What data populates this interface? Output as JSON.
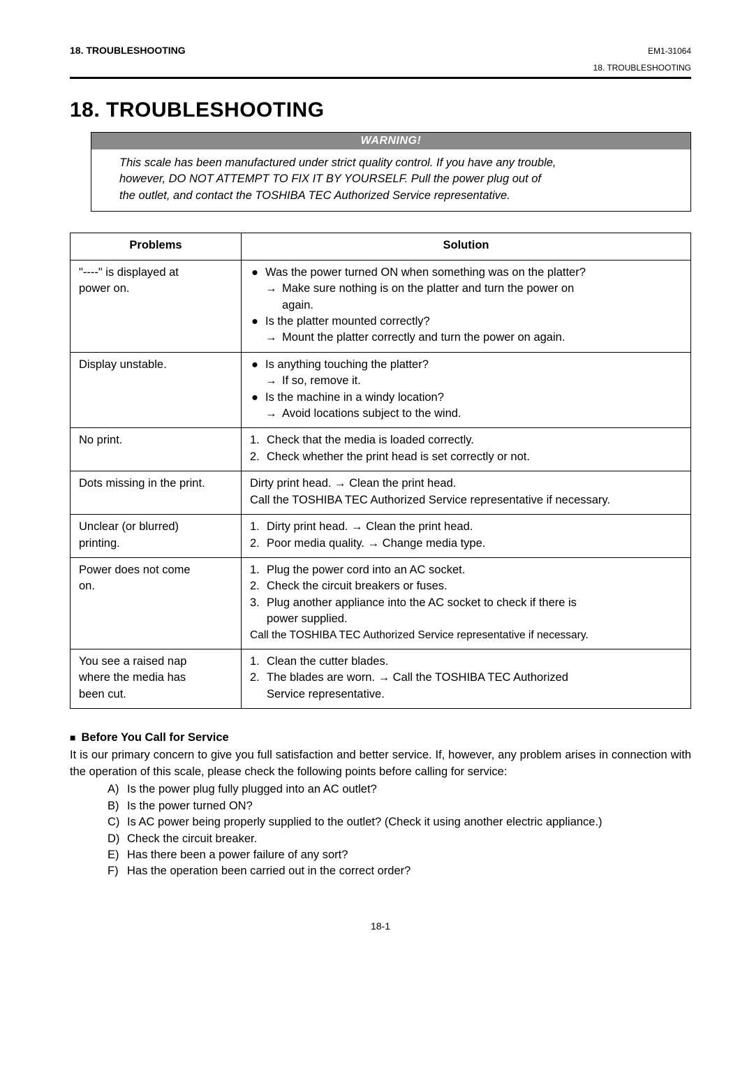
{
  "header": {
    "left": "18. TROUBLESHOOTING",
    "right_code": "EM1-31064",
    "right_sub": "18.  TROUBLESHOOTING"
  },
  "title": "18.  TROUBLESHOOTING",
  "warning": {
    "label": "WARNING!",
    "line1": "This scale has been manufactured under strict quality control.  If you have any trouble,",
    "line2": "however, DO NOT ATTEMPT TO FIX IT BY YOURSELF.  Pull the power plug out of",
    "line3": "the outlet, and contact the TOSHIBA TEC Authorized Service representative."
  },
  "table": {
    "col_problems": "Problems",
    "col_solution": "Solution",
    "r1": {
      "problem_l1": "\"----\" is displayed at",
      "problem_l2": "power on.",
      "b1": "Was the power turned ON when something was on the platter?",
      "a1a": "Make sure nothing is on the platter and turn the power on",
      "a1b": "again.",
      "b2": "Is the platter mounted correctly?",
      "a2": "Mount the platter correctly and turn the power on again."
    },
    "r2": {
      "problem": "Display unstable.",
      "b1": "Is anything touching the platter?",
      "a1": "If so, remove it.",
      "b2": "Is the machine in a windy location?",
      "a2": "Avoid locations subject to the wind."
    },
    "r3": {
      "problem": "No print.",
      "n1": "Check that the media is loaded correctly.",
      "n2": "Check whether the print head is set correctly or not."
    },
    "r4": {
      "problem": "Dots missing in the print.",
      "l1": "Dirty print head. → Clean the print head.",
      "l2": "Call the TOSHIBA TEC Authorized Service representative if necessary."
    },
    "r5": {
      "problem_l1": "Unclear (or blurred)",
      "problem_l2": "printing.",
      "n1": "Dirty print head. → Clean the print head.",
      "n2": "Poor media quality. → Change media type."
    },
    "r6": {
      "problem_l1": "Power does not come",
      "problem_l2": "on.",
      "n1": "Plug the power cord into an AC socket.",
      "n2": "Check the circuit breakers or fuses.",
      "n3a": "Plug another appliance into the AC socket to check if there is",
      "n3b": "power supplied.",
      "last": "Call the TOSHIBA TEC Authorized Service representative if necessary."
    },
    "r7": {
      "problem_l1": "You see a raised nap",
      "problem_l2": "where the media has",
      "problem_l3": "been cut.",
      "n1": "Clean the cutter blades.",
      "n2a": "The blades are worn. → Call the TOSHIBA TEC Authorized",
      "n2b": "Service representative."
    }
  },
  "before": {
    "heading": "Before You Call for Service",
    "intro": "It is our primary concern to give you full satisfaction and better service.  If, however, any problem arises in connection with the operation of this scale, please check the following points before calling for service:",
    "a": "Is the power plug fully plugged into an AC outlet?",
    "b": "Is the power turned ON?",
    "c": "Is AC power being properly supplied to the outlet?  (Check it using another electric appliance.)",
    "d": "Check the circuit breaker.",
    "e": "Has there been a power failure of any sort?",
    "f": "Has the operation been carried out in the correct order?"
  },
  "page_number": "18-1",
  "glyphs": {
    "bullet": "●",
    "arrow": "→",
    "square": "■"
  },
  "labels": {
    "A": "A)",
    "B": "B)",
    "C": "C)",
    "D": "D)",
    "E": "E)",
    "F": "F)",
    "n1": "1.",
    "n2": "2.",
    "n3": "3."
  }
}
